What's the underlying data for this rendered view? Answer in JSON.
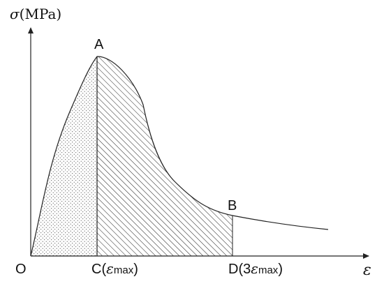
{
  "axes": {
    "y_symbol": "σ",
    "y_unit": "(MPa)",
    "x_symbol": "ε"
  },
  "points": {
    "origin": "O",
    "peak": "A",
    "post_peak": "B",
    "c_letter": "C",
    "c_inner": "ε",
    "c_sub": "max",
    "d_prefix": "D(3",
    "d_inner": "ε",
    "d_sub": "max"
  },
  "regions": {
    "pre_peak": "dotted",
    "post_peak": "hatched"
  },
  "colors": {
    "line": "#222222",
    "text": "#111111"
  }
}
